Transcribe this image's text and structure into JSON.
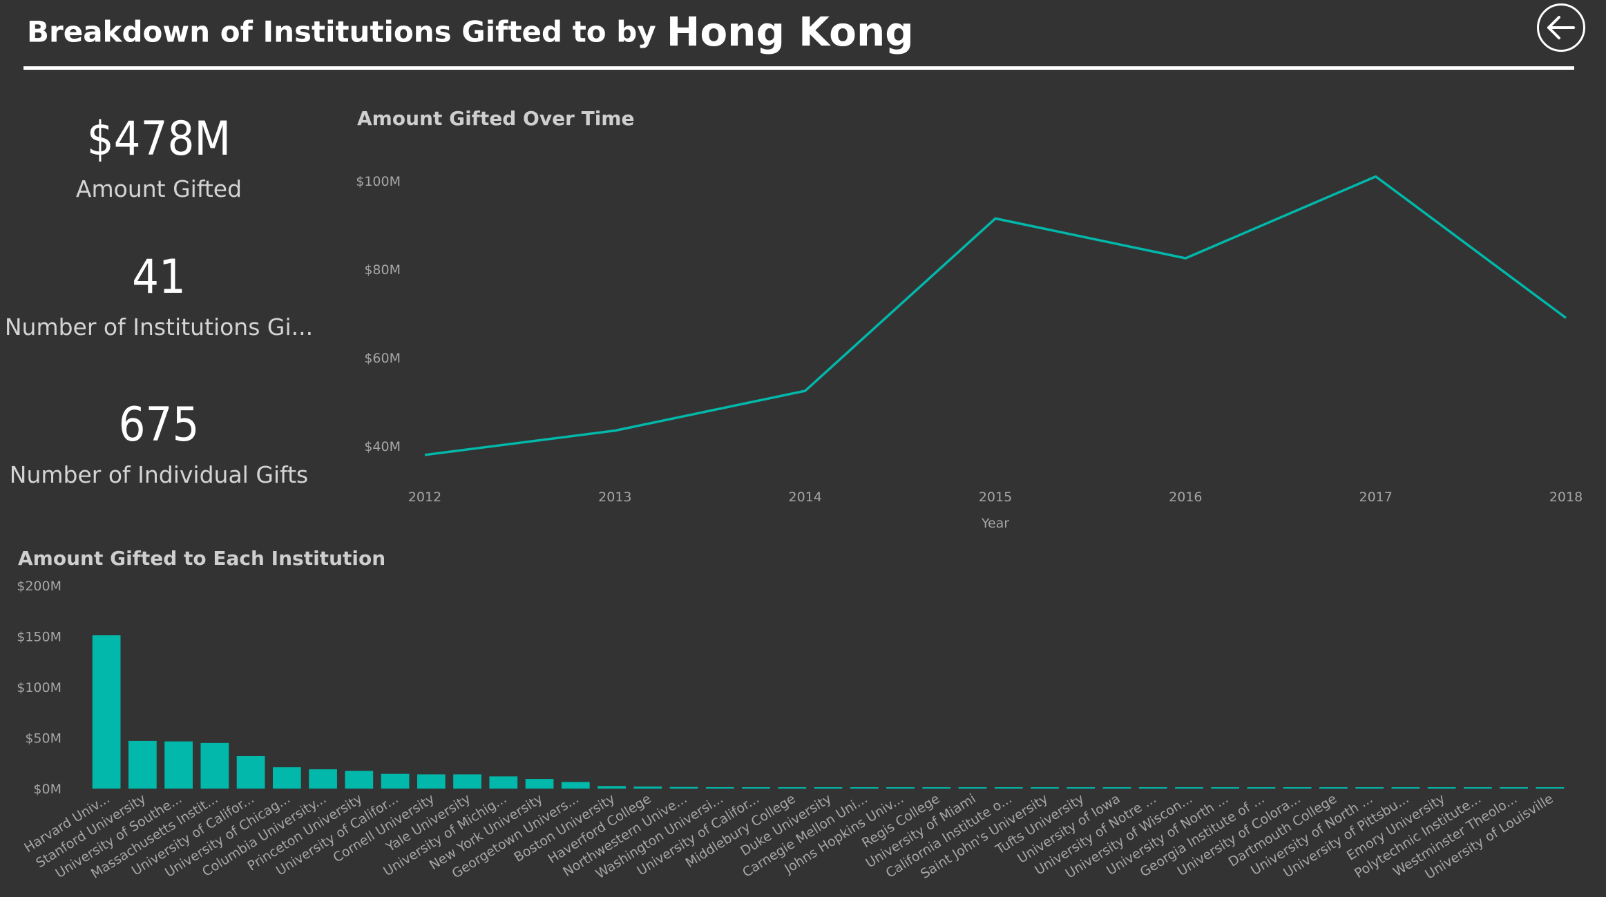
{
  "header": {
    "title_prefix": "Breakdown of Institutions Gifted to by",
    "country": "Hong Kong",
    "back_icon": "arrow-left-circle-icon"
  },
  "kpis": [
    {
      "value": "$478M",
      "label": "Amount Gifted"
    },
    {
      "value": "41",
      "label": "Number of Institutions Gi..."
    },
    {
      "value": "675",
      "label": "Number of Individual Gifts"
    }
  ],
  "line_card": {
    "title": "Amount Gifted Over Time"
  },
  "bar_card": {
    "title": "Amount Gifted to Each Institution"
  },
  "colors": {
    "background": "#333333",
    "series": "#01B8AA",
    "axis_text": "#a6a6a6"
  },
  "chart_data": [
    {
      "type": "line",
      "title": "Amount Gifted Over Time",
      "xlabel": "Year",
      "ylabel": "",
      "x": [
        2012,
        2013,
        2014,
        2015,
        2016,
        2017,
        2018
      ],
      "values": [
        38,
        43.5,
        52.5,
        91.5,
        82.5,
        101,
        69
      ],
      "ylim": [
        30,
        105
      ],
      "yticks": [
        40,
        60,
        80,
        100
      ],
      "ytick_labels": [
        "$40M",
        "$60M",
        "$80M",
        "$100M"
      ],
      "grid": false,
      "series_color": "#01B8AA"
    },
    {
      "type": "bar",
      "title": "Amount Gifted to Each Institution",
      "xlabel": "",
      "ylabel": "",
      "categories": [
        "Harvard Univ...",
        "Stanford University",
        "University of Southe...",
        "Massachusetts Instit...",
        "University of Califor...",
        "University of Chicag...",
        "Columbia University...",
        "Princeton University",
        "University of Califor...",
        "Cornell University",
        "Yale University",
        "University of Michig...",
        "New York University",
        "Georgetown Univers...",
        "Boston University",
        "Haverford College",
        "Northwestern Unive...",
        "Washington Universi...",
        "University of Califor...",
        "Middlebury College",
        "Duke University",
        "Carnegie Mellon Uni...",
        "Johns Hopkins Univ...",
        "Regis College",
        "University of Miami",
        "California Institute o...",
        "Saint John's University",
        "Tufts University",
        "University of Iowa",
        "University of Notre ...",
        "University of Wiscon...",
        "University of North ...",
        "Georgia Institute of ...",
        "University of Colora...",
        "Dartmouth College",
        "University of North ...",
        "University of Pittsbu...",
        "Emory University",
        "Polytechnic Institute...",
        "Westminster Theolo...",
        "University of Louisville"
      ],
      "values": [
        151,
        47,
        46.5,
        45,
        32,
        21,
        19,
        17.5,
        14.5,
        14,
        14,
        12,
        9.5,
        6.5,
        2.5,
        2,
        1.6,
        1.4,
        1.2,
        1,
        0.9,
        0.8,
        0.7,
        0.6,
        0.5,
        0.5,
        0.4,
        0.4,
        0.35,
        0.3,
        0.3,
        0.25,
        0.25,
        0.2,
        0.2,
        0.15,
        0.15,
        0.1,
        0.1,
        0.1,
        0.1
      ],
      "ylim": [
        0,
        200
      ],
      "yticks": [
        0,
        50,
        100,
        150,
        200
      ],
      "ytick_labels": [
        "$0M",
        "$50M",
        "$100M",
        "$150M",
        "$200M"
      ],
      "grid": false,
      "series_color": "#01B8AA"
    }
  ]
}
